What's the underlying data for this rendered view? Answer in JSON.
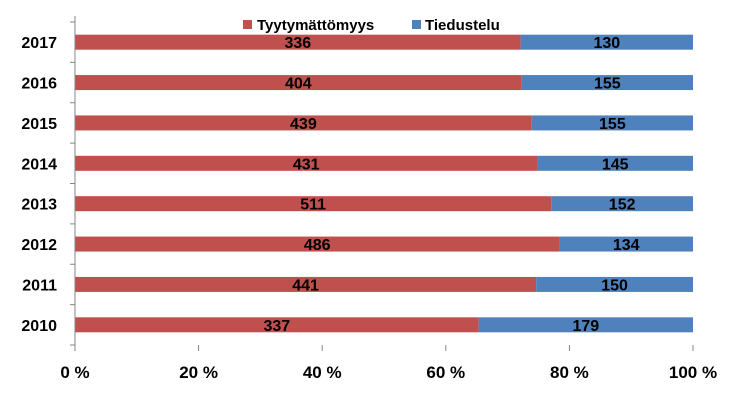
{
  "chart_data": {
    "type": "bar",
    "orientation": "horizontal",
    "stacking": "percent",
    "categories": [
      "2017",
      "2016",
      "2015",
      "2014",
      "2013",
      "2012",
      "2011",
      "2010"
    ],
    "series": [
      {
        "name": "Tyytymättömyys",
        "color": "#C0504D",
        "values": [
          336,
          404,
          439,
          431,
          511,
          486,
          441,
          337
        ]
      },
      {
        "name": "Tiedustelu",
        "color": "#4F81BD",
        "values": [
          130,
          155,
          155,
          145,
          152,
          134,
          150,
          179
        ]
      }
    ],
    "x_ticks": [
      "0 %",
      "20 %",
      "40 %",
      "60 %",
      "80 %",
      "100 %"
    ],
    "xlim": [
      0,
      100
    ],
    "legend_position": "top-center",
    "grid": false,
    "title": "",
    "xlabel": "",
    "ylabel": ""
  }
}
